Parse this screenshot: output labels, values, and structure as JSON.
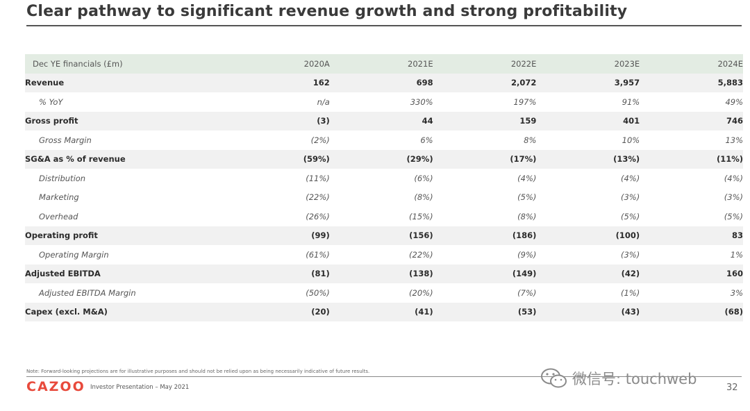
{
  "title": "Clear pathway to significant revenue growth and strong profitability",
  "table": {
    "header": [
      "Dec YE financials (£m)",
      "2020A",
      "2021E",
      "2022E",
      "2023E",
      "2024E"
    ],
    "rows": [
      {
        "label": "Revenue",
        "values": [
          "162",
          "698",
          "2,072",
          "3,957",
          "5,883"
        ]
      },
      {
        "label": "% YoY",
        "values": [
          "n/a",
          "330%",
          "197%",
          "91%",
          "49%"
        ]
      },
      {
        "label": "Gross profit",
        "values": [
          "(3)",
          "44",
          "159",
          "401",
          "746"
        ]
      },
      {
        "label": "Gross Margin",
        "values": [
          "(2%)",
          "6%",
          "8%",
          "10%",
          "13%"
        ]
      },
      {
        "label": "SG&A as % of revenue",
        "values": [
          "(59%)",
          "(29%)",
          "(17%)",
          "(13%)",
          "(11%)"
        ]
      },
      {
        "label": "Distribution",
        "values": [
          "(11%)",
          "(6%)",
          "(4%)",
          "(4%)",
          "(4%)"
        ]
      },
      {
        "label": "Marketing",
        "values": [
          "(22%)",
          "(8%)",
          "(5%)",
          "(3%)",
          "(3%)"
        ]
      },
      {
        "label": "Overhead",
        "values": [
          "(26%)",
          "(15%)",
          "(8%)",
          "(5%)",
          "(5%)"
        ]
      },
      {
        "label": "Operating profit",
        "values": [
          "(99)",
          "(156)",
          "(186)",
          "(100)",
          "83"
        ]
      },
      {
        "label": "Operating Margin",
        "values": [
          "(61%)",
          "(22%)",
          "(9%)",
          "(3%)",
          "1%"
        ]
      },
      {
        "label": "Adjusted EBITDA",
        "values": [
          "(81)",
          "(138)",
          "(149)",
          "(42)",
          "160"
        ]
      },
      {
        "label": "Adjusted EBITDA Margin",
        "values": [
          "(50%)",
          "(20%)",
          "(7%)",
          "(1%)",
          "3%"
        ]
      },
      {
        "label": "Capex (excl. M&A)",
        "values": [
          "(20)",
          "(41)",
          "(53)",
          "(43)",
          "(68)"
        ]
      }
    ]
  },
  "footer": {
    "note": "Note: Forward-looking projections are for illustrative purposes and should not be relied upon as being necessarily indicative of future results.",
    "logo": "CAZOO",
    "presentation": "Investor Presentation – May 2021",
    "page_number": "32",
    "watermark": "微信号: touchweb"
  },
  "colors": {
    "header_bg": "#e3ece3",
    "logo": "#e84a3c",
    "shade": "#f1f1f1"
  }
}
